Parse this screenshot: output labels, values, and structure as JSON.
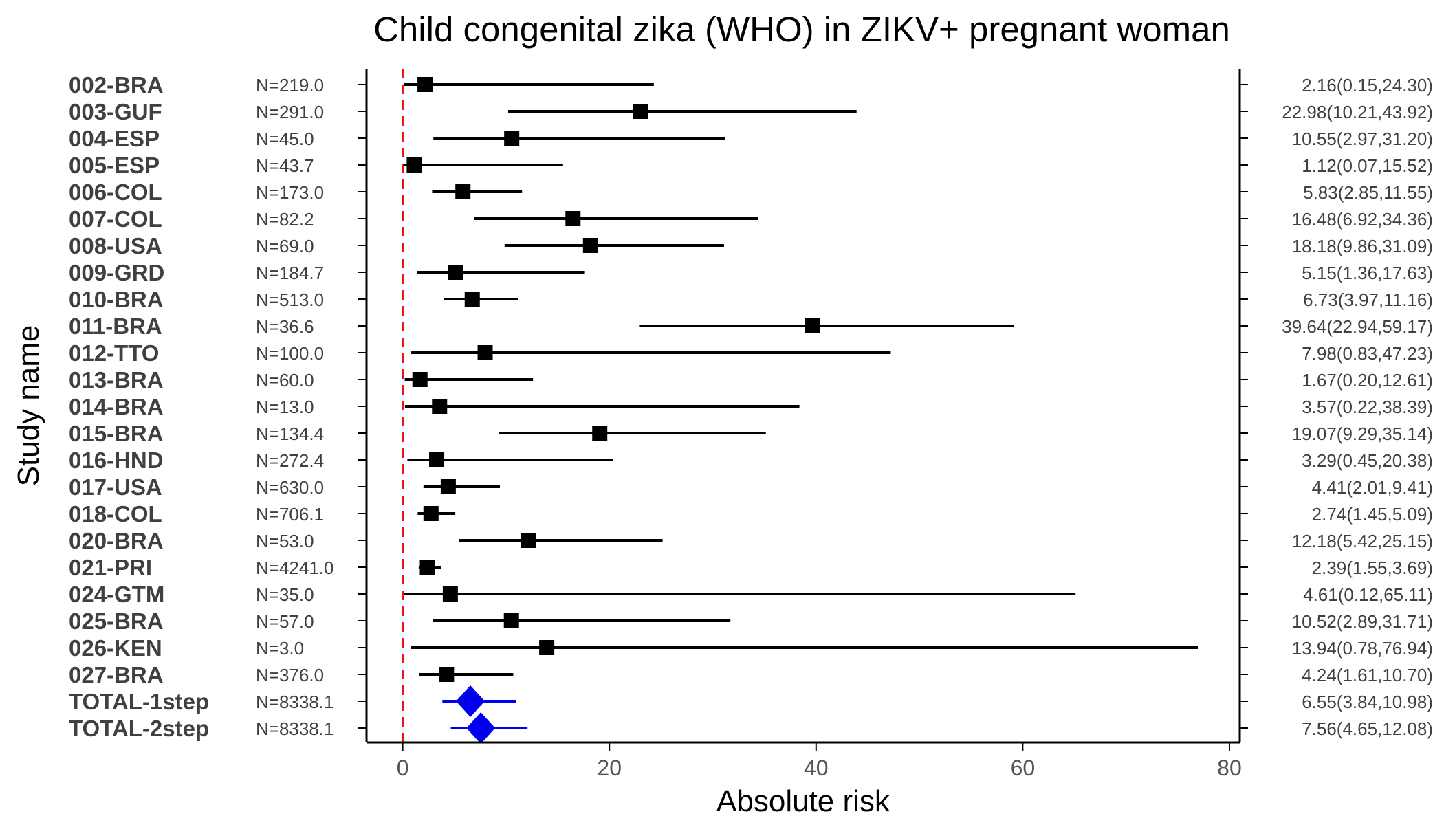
{
  "chart_data": {
    "type": "forest",
    "title": "Child congenital zika (WHO) in ZIKV+ pregnant woman",
    "xlabel": "Absolute risk",
    "ylabel": "Study name",
    "xlim": [
      -3.5,
      81
    ],
    "xticks": [
      0,
      20,
      40,
      60,
      80
    ],
    "reference_line": 0,
    "colors": {
      "study": "#000000",
      "total": "#0000ee",
      "reference": "#ee1111"
    },
    "studies": [
      {
        "name": "002-BRA",
        "n": "N=219.0",
        "est": 2.16,
        "low": 0.15,
        "high": 24.3,
        "label": "2.16(0.15,24.30)"
      },
      {
        "name": "003-GUF",
        "n": "N=291.0",
        "est": 22.98,
        "low": 10.21,
        "high": 43.92,
        "label": "22.98(10.21,43.92)"
      },
      {
        "name": "004-ESP",
        "n": "N=45.0",
        "est": 10.55,
        "low": 2.97,
        "high": 31.2,
        "label": "10.55(2.97,31.20)"
      },
      {
        "name": "005-ESP",
        "n": "N=43.7",
        "est": 1.12,
        "low": 0.07,
        "high": 15.52,
        "label": "1.12(0.07,15.52)"
      },
      {
        "name": "006-COL",
        "n": "N=173.0",
        "est": 5.83,
        "low": 2.85,
        "high": 11.55,
        "label": "5.83(2.85,11.55)"
      },
      {
        "name": "007-COL",
        "n": "N=82.2",
        "est": 16.48,
        "low": 6.92,
        "high": 34.36,
        "label": "16.48(6.92,34.36)"
      },
      {
        "name": "008-USA",
        "n": "N=69.0",
        "est": 18.18,
        "low": 9.86,
        "high": 31.09,
        "label": "18.18(9.86,31.09)"
      },
      {
        "name": "009-GRD",
        "n": "N=184.7",
        "est": 5.15,
        "low": 1.36,
        "high": 17.63,
        "label": "5.15(1.36,17.63)"
      },
      {
        "name": "010-BRA",
        "n": "N=513.0",
        "est": 6.73,
        "low": 3.97,
        "high": 11.16,
        "label": "6.73(3.97,11.16)"
      },
      {
        "name": "011-BRA",
        "n": "N=36.6",
        "est": 39.64,
        "low": 22.94,
        "high": 59.17,
        "label": "39.64(22.94,59.17)"
      },
      {
        "name": "012-TTO",
        "n": "N=100.0",
        "est": 7.98,
        "low": 0.83,
        "high": 47.23,
        "label": "7.98(0.83,47.23)"
      },
      {
        "name": "013-BRA",
        "n": "N=60.0",
        "est": 1.67,
        "low": 0.2,
        "high": 12.61,
        "label": "1.67(0.20,12.61)"
      },
      {
        "name": "014-BRA",
        "n": "N=13.0",
        "est": 3.57,
        "low": 0.22,
        "high": 38.39,
        "label": "3.57(0.22,38.39)"
      },
      {
        "name": "015-BRA",
        "n": "N=134.4",
        "est": 19.07,
        "low": 9.29,
        "high": 35.14,
        "label": "19.07(9.29,35.14)"
      },
      {
        "name": "016-HND",
        "n": "N=272.4",
        "est": 3.29,
        "low": 0.45,
        "high": 20.38,
        "label": "3.29(0.45,20.38)"
      },
      {
        "name": "017-USA",
        "n": "N=630.0",
        "est": 4.41,
        "low": 2.01,
        "high": 9.41,
        "label": "4.41(2.01,9.41)"
      },
      {
        "name": "018-COL",
        "n": "N=706.1",
        "est": 2.74,
        "low": 1.45,
        "high": 5.09,
        "label": "2.74(1.45,5.09)"
      },
      {
        "name": "020-BRA",
        "n": "N=53.0",
        "est": 12.18,
        "low": 5.42,
        "high": 25.15,
        "label": "12.18(5.42,25.15)"
      },
      {
        "name": "021-PRI",
        "n": "N=4241.0",
        "est": 2.39,
        "low": 1.55,
        "high": 3.69,
        "label": "2.39(1.55,3.69)"
      },
      {
        "name": "024-GTM",
        "n": "N=35.0",
        "est": 4.61,
        "low": 0.12,
        "high": 65.11,
        "label": "4.61(0.12,65.11)"
      },
      {
        "name": "025-BRA",
        "n": "N=57.0",
        "est": 10.52,
        "low": 2.89,
        "high": 31.71,
        "label": "10.52(2.89,31.71)"
      },
      {
        "name": "026-KEN",
        "n": "N=3.0",
        "est": 13.94,
        "low": 0.78,
        "high": 76.94,
        "label": "13.94(0.78,76.94)"
      },
      {
        "name": "027-BRA",
        "n": "N=376.0",
        "est": 4.24,
        "low": 1.61,
        "high": 10.7,
        "label": "4.24(1.61,10.70)"
      },
      {
        "name": "TOTAL-1step",
        "n": "N=8338.1",
        "est": 6.55,
        "low": 3.84,
        "high": 10.98,
        "label": "6.55(3.84,10.98)",
        "total": true
      },
      {
        "name": "TOTAL-2step",
        "n": "N=8338.1",
        "est": 7.56,
        "low": 4.65,
        "high": 12.08,
        "label": "7.56(4.65,12.08)",
        "total": true
      }
    ]
  }
}
